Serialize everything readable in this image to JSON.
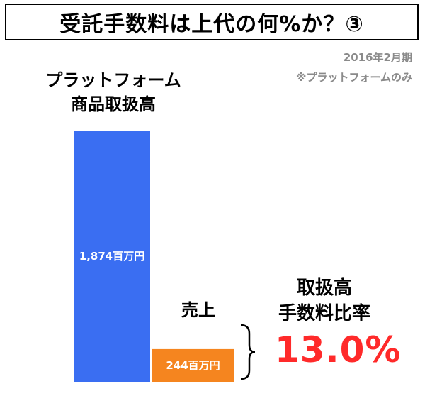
{
  "title": "受託手数料は上代の何%か？③",
  "notes": {
    "date": "2016年2月期",
    "platform_only": "※プラットフォームのみ"
  },
  "chart_data": {
    "type": "bar",
    "categories": [
      "プラットフォーム商品取扱高",
      "売上"
    ],
    "category_label_lines": [
      [
        "プラットフォーム",
        "商品取扱高"
      ],
      [
        "売上"
      ]
    ],
    "values": [
      1874,
      244
    ],
    "unit": "百万円",
    "data_labels": [
      "1,874百万円",
      "244百万円"
    ],
    "colors": [
      "#3a6ef2",
      "#f5851f"
    ],
    "title": "受託手数料は上代の何%か？③",
    "annotation": {
      "label_lines": [
        "取扱高",
        "手数料比率"
      ],
      "value": "13.0%",
      "color": "#ff2a2a"
    }
  }
}
